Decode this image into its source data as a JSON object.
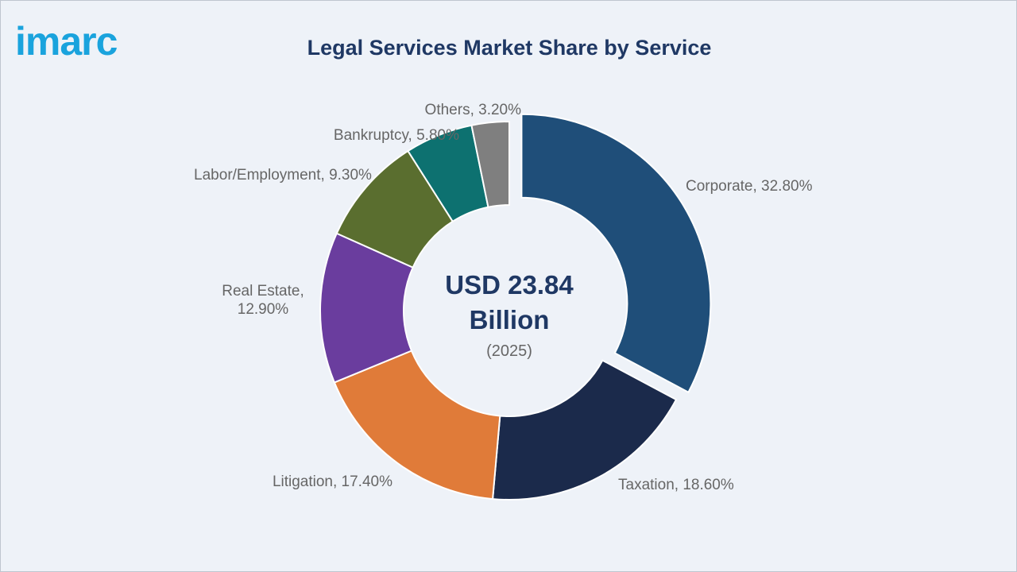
{
  "chart_data": {
    "type": "donut",
    "logo": "imarc",
    "title": "Legal Services Market Share by Service",
    "center_label": "USD 23.84 Billion",
    "center_sublabel": "(2025)",
    "categories": [
      "Corporate",
      "Taxation",
      "Litigation",
      "Real Estate",
      "Labor/Employment",
      "Bankruptcy",
      "Others"
    ],
    "values": [
      32.8,
      18.6,
      17.4,
      12.9,
      9.3,
      5.8,
      3.2
    ],
    "value_labels": [
      "Corporate, 32.80%",
      "Taxation, 18.60%",
      "Litigation, 17.40%",
      "Real Estate, 12.90%",
      "Labor/Employment, 9.30%",
      "Bankruptcy, 5.80%",
      "Others, 3.20%"
    ],
    "colors": [
      "#1f4e79",
      "#1b2a4b",
      "#e07b39",
      "#6a3d9e",
      "#5a6e2f",
      "#0d7170",
      "#7f7f7f"
    ],
    "exploded": [
      true,
      false,
      false,
      false,
      false,
      false,
      false
    ]
  }
}
